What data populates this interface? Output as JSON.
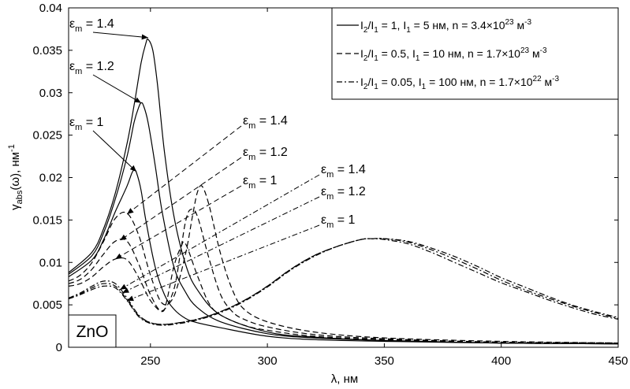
{
  "chart_data": {
    "type": "line",
    "xlabel": "λ, нм",
    "ylabel_main": "γ",
    "ylabel_sub": "abs",
    "ylabel_rest": "(ω), нм",
    "ylabel_sup": "-1",
    "xlim": [
      215,
      450
    ],
    "ylim": [
      0,
      0.04
    ],
    "xticks": [
      250,
      300,
      350,
      400,
      450
    ],
    "xtick_labels": [
      "250",
      "300",
      "350",
      "400",
      "450"
    ],
    "yticks": [
      0,
      0.005,
      0.01,
      0.015,
      0.02,
      0.025,
      0.03,
      0.035,
      0.04
    ],
    "ytick_labels": [
      "0",
      "0.005",
      "0.01",
      "0.015",
      "0.02",
      "0.025",
      "0.03",
      "0.035",
      "0.04"
    ],
    "grid": false,
    "legend_position": "top-right",
    "material_label": "ZnO",
    "legend": [
      {
        "style": "solid",
        "runs": [
          [
            "I",
            ""
          ],
          [
            "2",
            "sub"
          ],
          [
            "/I",
            ""
          ],
          [
            "1",
            "sub"
          ],
          [
            " = 1, I",
            ""
          ],
          [
            "1",
            "sub"
          ],
          [
            " = 5 нм, n = 3.4×10",
            ""
          ],
          [
            "23",
            "sup"
          ],
          [
            " м",
            ""
          ],
          [
            "-3",
            "sup"
          ]
        ]
      },
      {
        "style": "dashed",
        "runs": [
          [
            "I",
            ""
          ],
          [
            "2",
            "sub"
          ],
          [
            "/I",
            ""
          ],
          [
            "1",
            "sub"
          ],
          [
            " = 0.5, I",
            ""
          ],
          [
            "1",
            "sub"
          ],
          [
            " = 10 нм, n = 1.7×10",
            ""
          ],
          [
            "23",
            "sup"
          ],
          [
            " м",
            ""
          ],
          [
            "-3",
            "sup"
          ]
        ]
      },
      {
        "style": "dashdot",
        "runs": [
          [
            "I",
            ""
          ],
          [
            "2",
            "sub"
          ],
          [
            "/I",
            ""
          ],
          [
            "1",
            "sub"
          ],
          [
            " = 0.05, I",
            ""
          ],
          [
            "1",
            "sub"
          ],
          [
            " = 100 нм, n = 1.7×10",
            ""
          ],
          [
            "22",
            "sup"
          ],
          [
            " м",
            ""
          ],
          [
            "-3",
            "sup"
          ]
        ]
      }
    ],
    "series_groups": [
      {
        "style": "solid",
        "curves": [
          {
            "eps_m": "1.4",
            "x": [
              215,
              225,
              230,
              235,
              240,
              243,
              246,
              248,
              249,
              251,
              253,
              256,
              260,
              265,
              270,
              280,
              300,
              320,
              350,
              400,
              450
            ],
            "y": [
              0.0088,
              0.0112,
              0.014,
              0.0182,
              0.024,
              0.0285,
              0.0335,
              0.0358,
              0.0363,
              0.035,
              0.031,
              0.023,
              0.0155,
              0.0098,
              0.0068,
              0.0038,
              0.0018,
              0.0012,
              0.0008,
              0.0005,
              0.0004
            ]
          },
          {
            "eps_m": "1.2",
            "x": [
              215,
              225,
              230,
              235,
              240,
              243,
              245,
              246,
              247,
              249,
              252,
              255,
              260,
              265,
              270,
              280,
              300,
              320,
              350,
              400,
              450
            ],
            "y": [
              0.0086,
              0.0108,
              0.0135,
              0.0175,
              0.0225,
              0.0265,
              0.0283,
              0.0288,
              0.0285,
              0.0265,
              0.0215,
              0.016,
              0.0095,
              0.0065,
              0.0047,
              0.003,
              0.0016,
              0.0011,
              0.0008,
              0.0005,
              0.0004
            ]
          },
          {
            "eps_m": "1",
            "x": [
              215,
              225,
              230,
              235,
              240,
              242,
              243,
              244,
              246,
              248,
              252,
              256,
              260,
              265,
              270,
              280,
              300,
              320,
              350,
              400,
              450
            ],
            "y": [
              0.0083,
              0.0103,
              0.0127,
              0.016,
              0.019,
              0.0205,
              0.0209,
              0.0206,
              0.0185,
              0.015,
              0.0095,
              0.0062,
              0.0045,
              0.0034,
              0.0029,
              0.0023,
              0.0013,
              0.0009,
              0.0007,
              0.0005,
              0.0004
            ]
          }
        ]
      },
      {
        "style": "dashed",
        "curves": [
          {
            "eps_m": "1.4",
            "x": [
              215,
              220,
              225,
              230,
              235,
              240,
              245,
              250,
              255,
              260,
              265,
              268,
              270,
              272,
              275,
              280,
              285,
              290,
              300,
              320,
              350,
              400,
              450
            ],
            "y": [
              0.0078,
              0.0085,
              0.01,
              0.0125,
              0.0152,
              0.0158,
              0.0132,
              0.0085,
              0.0052,
              0.006,
              0.011,
              0.0155,
              0.0182,
              0.019,
              0.0168,
              0.011,
              0.0068,
              0.0045,
              0.003,
              0.0018,
              0.0011,
              0.0007,
              0.0005
            ]
          },
          {
            "eps_m": "1.2",
            "x": [
              215,
              220,
              225,
              230,
              235,
              240,
              245,
              250,
              255,
              260,
              263,
              265,
              267,
              270,
              275,
              280,
              285,
              290,
              300,
              320,
              350,
              400,
              450
            ],
            "y": [
              0.0075,
              0.008,
              0.0092,
              0.011,
              0.0125,
              0.0125,
              0.0098,
              0.0062,
              0.0043,
              0.0068,
              0.0115,
              0.0148,
              0.0162,
              0.0155,
              0.0105,
              0.0062,
              0.0042,
              0.0033,
              0.0024,
              0.0015,
              0.001,
              0.0006,
              0.0005
            ]
          },
          {
            "eps_m": "1",
            "x": [
              215,
              220,
              225,
              230,
              235,
              240,
              245,
              250,
              255,
              257,
              260,
              263,
              265,
              270,
              275,
              280,
              290,
              300,
              320,
              350,
              400,
              450
            ],
            "y": [
              0.0072,
              0.0075,
              0.0083,
              0.0095,
              0.0104,
              0.0103,
              0.0082,
              0.0055,
              0.0042,
              0.0055,
              0.0095,
              0.0118,
              0.0122,
              0.0085,
              0.0052,
              0.0038,
              0.0026,
              0.002,
              0.0013,
              0.0009,
              0.0006,
              0.0005
            ]
          }
        ]
      },
      {
        "style": "dashdot",
        "curves": [
          {
            "eps_m": "1.4",
            "x": [
              215,
              220,
              225,
              230,
              235,
              240,
              245,
              250,
              255,
              260,
              270,
              280,
              290,
              300,
              310,
              320,
              330,
              340,
              345,
              350,
              360,
              370,
              380,
              390,
              400,
              410,
              420,
              430,
              440,
              450
            ],
            "y": [
              0.0058,
              0.0064,
              0.0072,
              0.0078,
              0.0075,
              0.0058,
              0.0038,
              0.0029,
              0.0027,
              0.0028,
              0.0033,
              0.0042,
              0.0055,
              0.0072,
              0.0092,
              0.0108,
              0.0119,
              0.0127,
              0.0128,
              0.0127,
              0.0122,
              0.0112,
              0.01,
              0.0088,
              0.0076,
              0.0066,
              0.0056,
              0.0047,
              0.0039,
              0.0033
            ]
          },
          {
            "eps_m": "1.2",
            "x": [
              215,
              220,
              225,
              230,
              235,
              240,
              245,
              250,
              255,
              260,
              270,
              280,
              290,
              300,
              310,
              320,
              330,
              340,
              345,
              350,
              360,
              370,
              380,
              390,
              400,
              410,
              420,
              430,
              440,
              450
            ],
            "y": [
              0.0058,
              0.0063,
              0.007,
              0.0075,
              0.0072,
              0.0056,
              0.0037,
              0.0029,
              0.0027,
              0.0028,
              0.0033,
              0.0042,
              0.0055,
              0.0072,
              0.0092,
              0.0108,
              0.0119,
              0.0127,
              0.0128,
              0.0128,
              0.0124,
              0.0115,
              0.0104,
              0.0092,
              0.0079,
              0.0068,
              0.0058,
              0.0049,
              0.0041,
              0.0034
            ]
          },
          {
            "eps_m": "1",
            "x": [
              215,
              220,
              225,
              230,
              235,
              240,
              245,
              250,
              255,
              260,
              270,
              280,
              290,
              300,
              310,
              320,
              330,
              340,
              345,
              350,
              360,
              370,
              380,
              390,
              400,
              410,
              420,
              430,
              440,
              450
            ],
            "y": [
              0.0057,
              0.0062,
              0.0068,
              0.0072,
              0.007,
              0.0055,
              0.0036,
              0.0028,
              0.0026,
              0.0027,
              0.0032,
              0.0041,
              0.0054,
              0.0071,
              0.0091,
              0.0107,
              0.0119,
              0.0127,
              0.0128,
              0.0128,
              0.0125,
              0.0117,
              0.0107,
              0.0095,
              0.0082,
              0.0071,
              0.006,
              0.005,
              0.0042,
              0.0035
            ]
          }
        ]
      }
    ],
    "annotations": [
      {
        "group": "solid",
        "base": "ε",
        "sub": "m",
        "rest": " = 1.4",
        "text": [
          88,
          35
        ],
        "arrow_to": [
          249,
          0.0365
        ]
      },
      {
        "group": "solid",
        "base": "ε",
        "sub": "m",
        "rest": " = 1.2",
        "text": [
          88,
          89
        ],
        "arrow_to": [
          246,
          0.0288
        ]
      },
      {
        "group": "solid",
        "base": "ε",
        "sub": "m",
        "rest": " = 1",
        "text": [
          88,
          160
        ],
        "arrow_to": [
          244,
          0.0207
        ]
      },
      {
        "group": "dashed",
        "base": "ε",
        "sub": "m",
        "rest": " = 1.4",
        "text": [
          308,
          158
        ],
        "arrow_to": [
          240,
          0.0157
        ]
      },
      {
        "group": "dashed",
        "base": "ε",
        "sub": "m",
        "rest": " = 1.2",
        "text": [
          308,
          198
        ],
        "arrow_to": [
          237,
          0.0126
        ]
      },
      {
        "group": "dashed",
        "base": "ε",
        "sub": "m",
        "rest": " = 1",
        "text": [
          308,
          234
        ],
        "arrow_to": [
          235,
          0.0104
        ]
      },
      {
        "group": "dashdot",
        "base": "ε",
        "sub": "m",
        "rest": " = 1.4",
        "text": [
          407,
          220
        ],
        "arrow_to": [
          237,
          0.0068
        ]
      },
      {
        "group": "dashdot",
        "base": "ε",
        "sub": "m",
        "rest": " = 1.2",
        "text": [
          407,
          248
        ],
        "arrow_to": [
          238,
          0.0064
        ]
      },
      {
        "group": "dashdot",
        "base": "ε",
        "sub": "m",
        "rest": " = 1",
        "text": [
          407,
          284
        ],
        "arrow_to": [
          240,
          0.0055
        ]
      }
    ]
  }
}
